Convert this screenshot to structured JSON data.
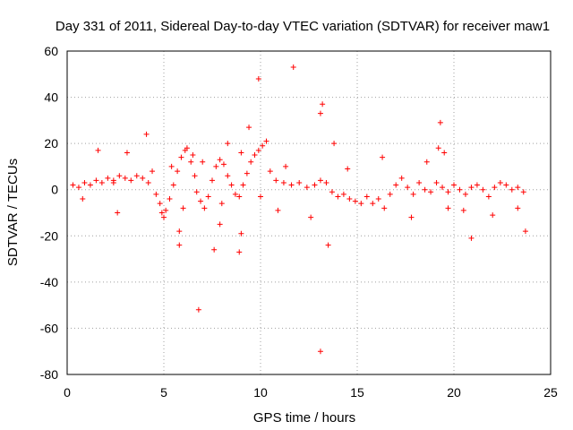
{
  "chart_data": {
    "type": "scatter",
    "title": "Day 331 of 2011, Sidereal Day-to-day VTEC variation (SDTVAR) for receiver maw1",
    "xlabel": "GPS time / hours",
    "ylabel": "SDTVAR / TECUs",
    "xlim": [
      0,
      25
    ],
    "ylim": [
      -80,
      60
    ],
    "xticks": [
      "0",
      "5",
      "10",
      "15",
      "20",
      "25"
    ],
    "yticks": [
      "60",
      "40",
      "20",
      "0",
      "-20",
      "-40",
      "-60",
      "-80"
    ],
    "grid": true,
    "marker": "+",
    "color": "#ff0000",
    "series": [
      {
        "name": "SDTVAR",
        "points": [
          [
            0.3,
            2
          ],
          [
            0.6,
            1
          ],
          [
            0.9,
            3
          ],
          [
            1.2,
            2
          ],
          [
            1.5,
            4
          ],
          [
            1.8,
            3
          ],
          [
            2.1,
            5
          ],
          [
            2.4,
            4
          ],
          [
            2.7,
            6
          ],
          [
            3.0,
            5
          ],
          [
            3.3,
            4
          ],
          [
            3.6,
            6
          ],
          [
            3.9,
            5
          ],
          [
            4.2,
            3
          ],
          [
            4.4,
            8
          ],
          [
            4.6,
            -2
          ],
          [
            4.8,
            -6
          ],
          [
            5.0,
            -12
          ],
          [
            5.1,
            -9
          ],
          [
            5.3,
            -4
          ],
          [
            5.5,
            2
          ],
          [
            5.7,
            8
          ],
          [
            5.9,
            14
          ],
          [
            6.1,
            17
          ],
          [
            6.2,
            18
          ],
          [
            6.4,
            12
          ],
          [
            6.6,
            6
          ],
          [
            6.7,
            -1
          ],
          [
            6.9,
            -5
          ],
          [
            7.1,
            -8
          ],
          [
            7.3,
            -3
          ],
          [
            7.5,
            4
          ],
          [
            7.7,
            10
          ],
          [
            7.9,
            13
          ],
          [
            8.1,
            11
          ],
          [
            8.3,
            6
          ],
          [
            8.5,
            2
          ],
          [
            8.7,
            -2
          ],
          [
            8.9,
            -3
          ],
          [
            9.1,
            2
          ],
          [
            9.3,
            7
          ],
          [
            9.5,
            12
          ],
          [
            9.7,
            15
          ],
          [
            9.9,
            17
          ],
          [
            10.1,
            19
          ],
          [
            10.3,
            21
          ],
          [
            10.5,
            8
          ],
          [
            10.8,
            4
          ],
          [
            11.2,
            3
          ],
          [
            11.6,
            2
          ],
          [
            12.0,
            3
          ],
          [
            12.4,
            1
          ],
          [
            12.8,
            2
          ],
          [
            13.1,
            4
          ],
          [
            13.4,
            3
          ],
          [
            13.7,
            -1
          ],
          [
            14.0,
            -3
          ],
          [
            14.3,
            -2
          ],
          [
            14.6,
            -4
          ],
          [
            14.9,
            -5
          ],
          [
            15.2,
            -6
          ],
          [
            15.5,
            -3
          ],
          [
            15.8,
            -6
          ],
          [
            16.1,
            -4
          ],
          [
            16.4,
            -8
          ],
          [
            16.7,
            -2
          ],
          [
            17.0,
            2
          ],
          [
            17.3,
            5
          ],
          [
            17.6,
            1
          ],
          [
            17.9,
            -2
          ],
          [
            18.2,
            3
          ],
          [
            18.5,
            0
          ],
          [
            18.8,
            -1
          ],
          [
            19.1,
            3
          ],
          [
            19.4,
            1
          ],
          [
            19.7,
            -1
          ],
          [
            20.0,
            2
          ],
          [
            20.3,
            0
          ],
          [
            20.6,
            -2
          ],
          [
            20.9,
            1
          ],
          [
            21.2,
            2
          ],
          [
            21.5,
            0
          ],
          [
            21.8,
            -3
          ],
          [
            22.1,
            1
          ],
          [
            22.4,
            3
          ],
          [
            22.7,
            2
          ],
          [
            23.0,
            0
          ],
          [
            23.3,
            1
          ],
          [
            23.6,
            -1
          ],
          [
            2.4,
            3
          ],
          [
            5.4,
            10
          ],
          [
            6.0,
            -8
          ],
          [
            7.0,
            12
          ],
          [
            8.0,
            -6
          ],
          [
            9.0,
            16
          ],
          [
            10.0,
            -3
          ],
          [
            9.9,
            48
          ],
          [
            11.7,
            53
          ],
          [
            13.2,
            37
          ],
          [
            13.1,
            33
          ],
          [
            6.8,
            -52
          ],
          [
            13.1,
            -70
          ],
          [
            8.9,
            -27
          ],
          [
            7.6,
            -26
          ],
          [
            5.8,
            -24
          ],
          [
            19.3,
            29
          ],
          [
            19.5,
            16
          ],
          [
            19.2,
            18
          ],
          [
            20.9,
            -21
          ],
          [
            23.7,
            -18
          ],
          [
            13.5,
            -24
          ],
          [
            13.8,
            20
          ],
          [
            9.4,
            27
          ],
          [
            4.1,
            24
          ],
          [
            4.9,
            -10
          ],
          [
            0.8,
            -4
          ],
          [
            2.6,
            -10
          ],
          [
            12.6,
            -12
          ],
          [
            10.9,
            -9
          ],
          [
            17.8,
            -12
          ],
          [
            19.7,
            -8
          ],
          [
            20.5,
            -9
          ],
          [
            16.3,
            14
          ],
          [
            18.6,
            12
          ],
          [
            1.6,
            17
          ],
          [
            3.1,
            16
          ],
          [
            8.3,
            20
          ],
          [
            5.8,
            -18
          ],
          [
            7.9,
            -15
          ],
          [
            9.0,
            -19
          ],
          [
            11.3,
            10
          ],
          [
            14.5,
            9
          ],
          [
            22.0,
            -11
          ],
          [
            23.3,
            -8
          ],
          [
            6.5,
            15
          ]
        ]
      }
    ]
  }
}
